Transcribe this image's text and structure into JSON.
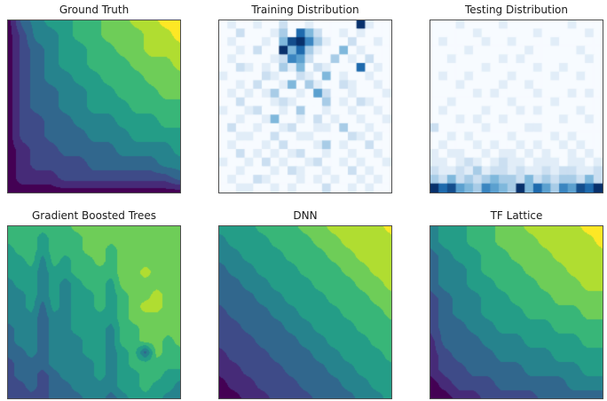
{
  "colormaps": {
    "viridis": [
      [
        0,
        "#440154"
      ],
      [
        0.13,
        "#46327e"
      ],
      [
        0.25,
        "#3b528b"
      ],
      [
        0.38,
        "#2c728e"
      ],
      [
        0.5,
        "#21918c"
      ],
      [
        0.63,
        "#27ad81"
      ],
      [
        0.75,
        "#5ec962"
      ],
      [
        0.88,
        "#aadc32"
      ],
      [
        1,
        "#fde725"
      ]
    ],
    "blues": [
      [
        0,
        "#f7fbff"
      ],
      [
        0.25,
        "#c6dbef"
      ],
      [
        0.5,
        "#6baed6"
      ],
      [
        0.75,
        "#2171b5"
      ],
      [
        1,
        "#08306b"
      ]
    ]
  },
  "chart_data": [
    {
      "type": "heatmap",
      "subtype": "filled-contour",
      "title": "Ground Truth",
      "colormap": "viridis",
      "render": "contour",
      "value_min": 0,
      "value_max": 9,
      "grid": [
        "0345566778899",
        "0244566777889",
        "0234556677888",
        "0234556667778",
        "0234455666777",
        "0233445566677",
        "0233445556666",
        "0223344455566",
        "0223334445555",
        "0122333344445",
        "0122223333344",
        "0111222222223",
        "0000000000000"
      ]
    },
    {
      "type": "heatmap",
      "subtype": "histogram2d",
      "title": "Training Distribution",
      "colormap": "blues",
      "render": "cells",
      "value_min": 0,
      "value_max": 9,
      "grid": [
        "01001002001000009100",
        "00200013074200101000",
        "01000104896310020010",
        "00102009473100401000",
        "01000012652003010200",
        "00210103140210007010",
        "10000210021040100100",
        "00102001403100210010",
        "01010130010520010001",
        "00200012100030102100",
        "10012001030010010010",
        "00100140010201001001",
        "02001001200110300100",
        "00110020011000021010",
        "01000102000130100200",
        "00201010120010010010",
        "10010201001200101001",
        "00100010210010020100",
        "01002100010101001010",
        "00110010100020010100"
      ]
    },
    {
      "type": "heatmap",
      "subtype": "histogram2d",
      "title": "Testing Distribution",
      "colormap": "blues",
      "render": "cells",
      "value_min": 0,
      "value_max": 9,
      "grid": [
        "00010000100000001000",
        "00000100000010000010",
        "01000010010000100000",
        "00001000000100000100",
        "00100000101000000010",
        "00000010000010010000",
        "01001000010000100100",
        "00010000100100000000",
        "00000101000010001010",
        "00100000010000100000",
        "01000010001010000100",
        "00010100100000010010",
        "20000010000110000000",
        "00101000010000101000",
        "01000101001010010100",
        "10110010110101001010",
        "11012101211011101101",
        "21121312212112122112",
        "32423234332423233242",
        "97854365439475365879"
      ]
    },
    {
      "type": "heatmap",
      "subtype": "filled-contour",
      "title": "Gradient Boosted Trees",
      "colormap": "viridis",
      "render": "contour",
      "value_min": 0,
      "value_max": 9,
      "grid": [
        "6666667777777777",
        "6665666777777777",
        "5665666776777777",
        "5564656676777777",
        "5554556666778777",
        "4554545665777777",
        "4454545565677877",
        "4453545565678877",
        "4443445555677777",
        "3443445554667777",
        "3443444554667767",
        "3343444554563766",
        "2333444454566666",
        "2332344454556655",
        "2232334444556554",
        "2222333443455544"
      ]
    },
    {
      "type": "heatmap",
      "subtype": "filled-contour",
      "title": "DNN",
      "colormap": "viridis",
      "render": "contour",
      "value_min": 0,
      "value_max": 9,
      "grid": [
        "5556667788889",
        "4555666778888",
        "4455566677888",
        "3445556667788",
        "3344555666778",
        "3334455566677",
        "2333445556667",
        "2233344555666",
        "2223334455566",
        "1222333445556",
        "1122233344555",
        "0112223334455",
        "0011222333445"
      ]
    },
    {
      "type": "heatmap",
      "subtype": "filled-contour",
      "title": "TF Lattice",
      "colormap": "viridis",
      "render": "contour",
      "value_min": 0,
      "value_max": 9,
      "grid": [
        "4556677888899",
        "4556677788889",
        "3455667778888",
        "3445666777888",
        "3445566677788",
        "2344556667777",
        "2344555666677",
        "2334455556666",
        "1333444555566",
        "1233344445555",
        "1223333444455",
        "0122233333444",
        "0011222233333"
      ]
    }
  ]
}
